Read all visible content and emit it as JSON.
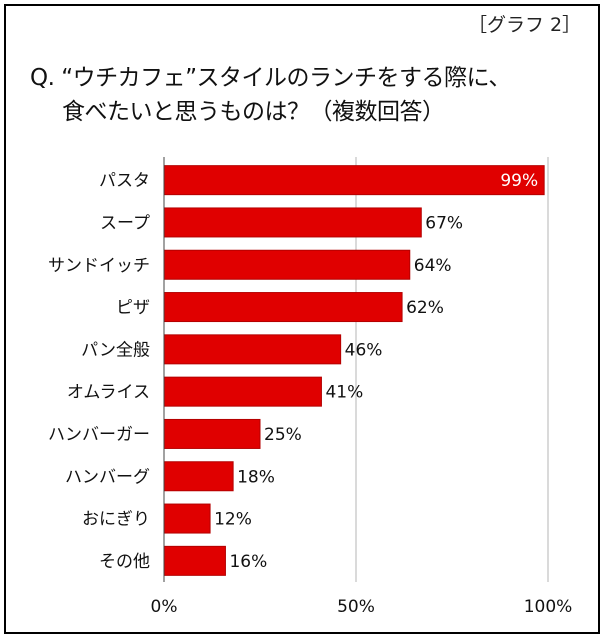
{
  "header": {
    "graph_tag": "［グラフ 2］",
    "question_line1": "Q. “ウチカフェ”スタイルのランチをする際に、",
    "question_line2": "食べたいと思うものは？（複数回答）"
  },
  "colors": {
    "bar": "#e00000",
    "bar_stroke": "#b40000",
    "gridline": "#b5b5b5",
    "axis": "#444444"
  },
  "chart_data": {
    "type": "bar",
    "orientation": "horizontal",
    "categories": [
      "パスタ",
      "スープ",
      "サンドイッチ",
      "ピザ",
      "パン全般",
      "オムライス",
      "ハンバーガー",
      "ハンバーグ",
      "おにぎり",
      "その他"
    ],
    "values": [
      99,
      67,
      64,
      62,
      46,
      41,
      25,
      18,
      12,
      16
    ],
    "value_labels": [
      "99%",
      "67%",
      "64%",
      "62%",
      "46%",
      "41%",
      "25%",
      "18%",
      "12%",
      "16%"
    ],
    "xlim": [
      0,
      100
    ],
    "x_ticks": [
      0,
      50,
      100
    ],
    "x_tick_labels": [
      "0%",
      "50%",
      "100%"
    ],
    "grid": "vertical at 50% and 100%",
    "title": "",
    "xlabel": "",
    "ylabel": ""
  }
}
